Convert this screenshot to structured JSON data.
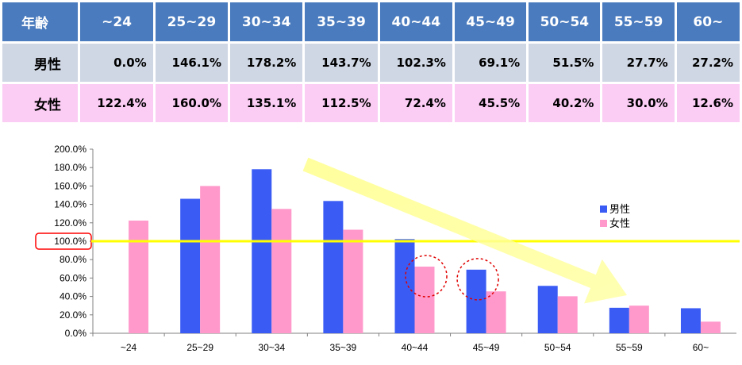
{
  "table": {
    "header_label": "年齢",
    "ages": [
      "~24",
      "25~29",
      "30~34",
      "35~39",
      "40~44",
      "45~49",
      "50~54",
      "55~59",
      "60~"
    ],
    "male_label": "男性",
    "female_label": "女性",
    "male_values": [
      "0.0%",
      "146.1%",
      "178.2%",
      "143.7%",
      "102.3%",
      "69.1%",
      "51.5%",
      "27.7%",
      "27.2%"
    ],
    "female_values": [
      "122.4%",
      "160.0%",
      "135.1%",
      "112.5%",
      "72.4%",
      "45.5%",
      "40.2%",
      "30.0%",
      "12.6%"
    ]
  },
  "chart_data": {
    "type": "bar",
    "categories": [
      "~24",
      "25~29",
      "30~34",
      "35~39",
      "40~44",
      "45~49",
      "50~54",
      "55~59",
      "60~"
    ],
    "series": [
      {
        "name": "男性",
        "color": "#3a5cf5",
        "values": [
          0.0,
          146.1,
          178.2,
          143.7,
          102.3,
          69.1,
          51.5,
          27.7,
          27.2
        ]
      },
      {
        "name": "女性",
        "color": "#ff99cc",
        "values": [
          122.4,
          160.0,
          135.1,
          112.5,
          72.4,
          45.5,
          40.2,
          30.0,
          12.6
        ]
      }
    ],
    "ylim": [
      0,
      200
    ],
    "yticks": [
      "0.0%",
      "20.0%",
      "40.0%",
      "60.0%",
      "80.0%",
      "100.0%",
      "120.0%",
      "140.0%",
      "160.0%",
      "180.0%",
      "200.0%"
    ],
    "reference_line": {
      "value": 100,
      "color": "#ffff00",
      "tick_highlight": "100.0%",
      "highlight_color": "#ff0000"
    },
    "grid": false,
    "legend_placement": "right",
    "annotations": {
      "trend_arrow_color": "#ffff99",
      "circled_bars": [
        {
          "series": "女性",
          "category": "40~44"
        },
        {
          "series": "男性",
          "category": "45~49"
        }
      ],
      "circle_color": "#e00000"
    }
  }
}
